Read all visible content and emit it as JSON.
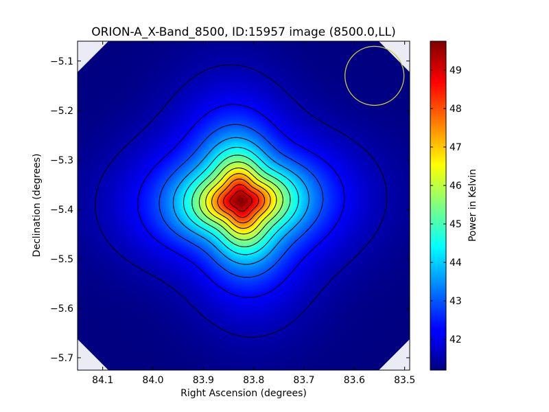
{
  "chart_data": {
    "type": "heatmap",
    "title": "ORION-A_X-Band_8500, ID:15957 image (8500.0,LL)",
    "xlabel": "Right Ascension (degrees)",
    "ylabel": "Declination (degrees)",
    "colorbar_label": "Power in Kelvin",
    "colormap": "jet",
    "xlim": [
      84.15,
      83.49
    ],
    "ylim": [
      -5.725,
      -5.06
    ],
    "x_ticks": [
      {
        "value": 84.1,
        "label": "84.1"
      },
      {
        "value": 84.0,
        "label": "84.0"
      },
      {
        "value": 83.9,
        "label": "83.9"
      },
      {
        "value": 83.8,
        "label": "83.8"
      },
      {
        "value": 83.7,
        "label": "83.7"
      },
      {
        "value": 83.6,
        "label": "83.6"
      },
      {
        "value": 83.5,
        "label": "83.5"
      }
    ],
    "y_ticks": [
      {
        "value": -5.1,
        "label": "−5.1"
      },
      {
        "value": -5.2,
        "label": "−5.2"
      },
      {
        "value": -5.3,
        "label": "−5.3"
      },
      {
        "value": -5.4,
        "label": "−5.4"
      },
      {
        "value": -5.5,
        "label": "−5.5"
      },
      {
        "value": -5.6,
        "label": "−5.6"
      },
      {
        "value": -5.7,
        "label": "−5.7"
      }
    ],
    "colorbar_range": [
      41.2,
      49.75
    ],
    "colorbar_ticks": [
      {
        "value": 42,
        "label": "42"
      },
      {
        "value": 43,
        "label": "43"
      },
      {
        "value": 44,
        "label": "44"
      },
      {
        "value": 45,
        "label": "45"
      },
      {
        "value": 46,
        "label": "46"
      },
      {
        "value": 47,
        "label": "47"
      },
      {
        "value": 48,
        "label": "48"
      },
      {
        "value": 49,
        "label": "49"
      }
    ],
    "peak": {
      "ra": 83.825,
      "dec": -5.383,
      "value": 49.75
    },
    "background_level": 41.2,
    "beam_circle": {
      "ra": 83.56,
      "dec": -5.13,
      "color": "#cccc33"
    },
    "contour_count": 12
  }
}
